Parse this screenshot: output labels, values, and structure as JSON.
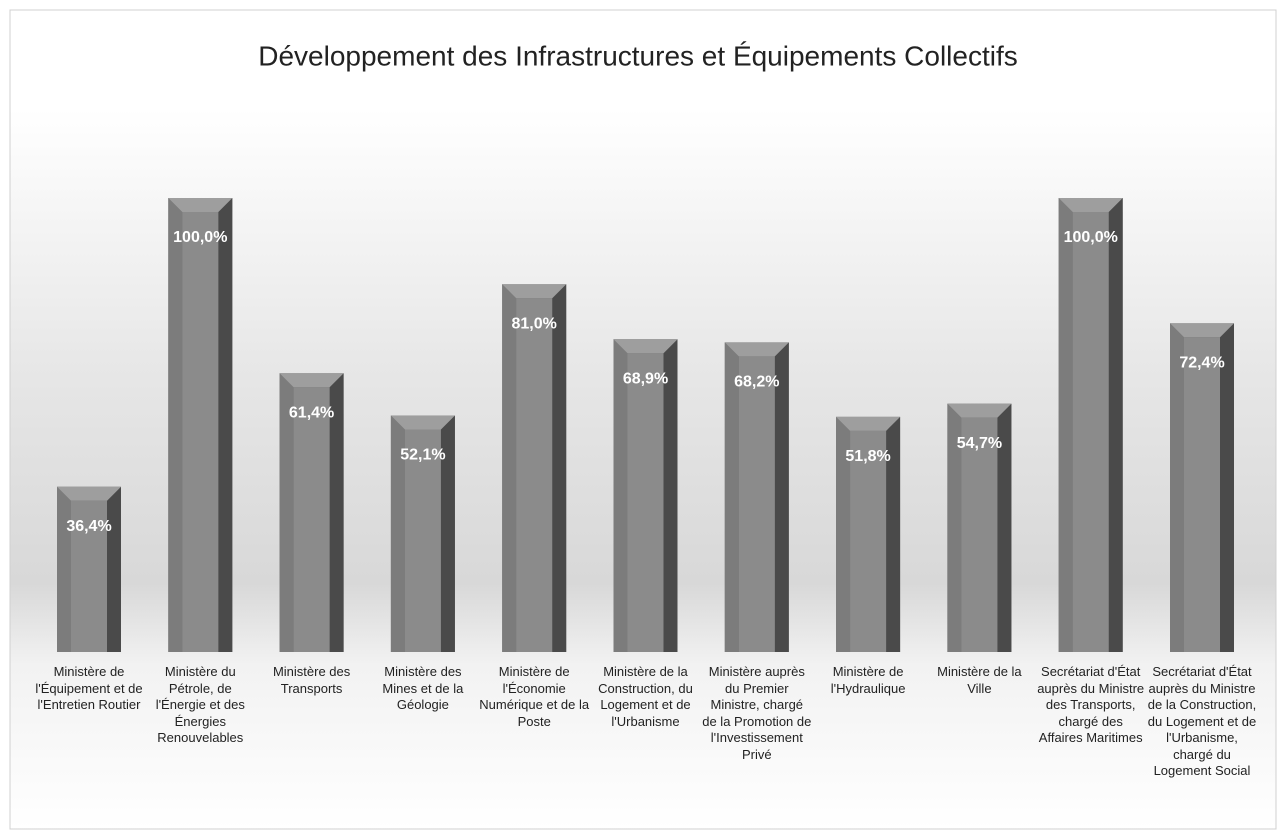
{
  "chart_data": {
    "type": "bar",
    "title": "Développement des Infrastructures et Équipements Collectifs",
    "categories": [
      "Ministère de l'Équipement et de l'Entretien Routier",
      "Ministère du Pétrole, de l'Énergie et des Énergies Renouvelables",
      "Ministère des Transports",
      "Ministère des Mines et de la Géologie",
      "Ministère de l'Économie Numérique et de la Poste",
      "Ministère de la Construction, du Logement et de l'Urbanisme",
      "Ministère auprès du Premier Ministre, chargé de la Promotion de l'Investissement Privé",
      "Ministère de l'Hydraulique",
      "Ministère de la Ville",
      "Secrétariat d'État auprès du Ministre des Transports, chargé des Affaires Maritimes",
      "Secrétariat d'État auprès du Ministre de la Construction, du Logement et de l'Urbanisme, chargé du Logement Social"
    ],
    "values": [
      36.4,
      100,
      61.4,
      52.1,
      81.0,
      68.9,
      68.2,
      51.8,
      54.7,
      100,
      72.4
    ],
    "value_labels": [
      "36,4%",
      "100,0%",
      "61,4%",
      "52,1%",
      "81,0%",
      "68,9%",
      "68,2%",
      "51,8%",
      "54,7%",
      "100,0%",
      "72,4%"
    ],
    "color": "#6b6b6b"
  }
}
